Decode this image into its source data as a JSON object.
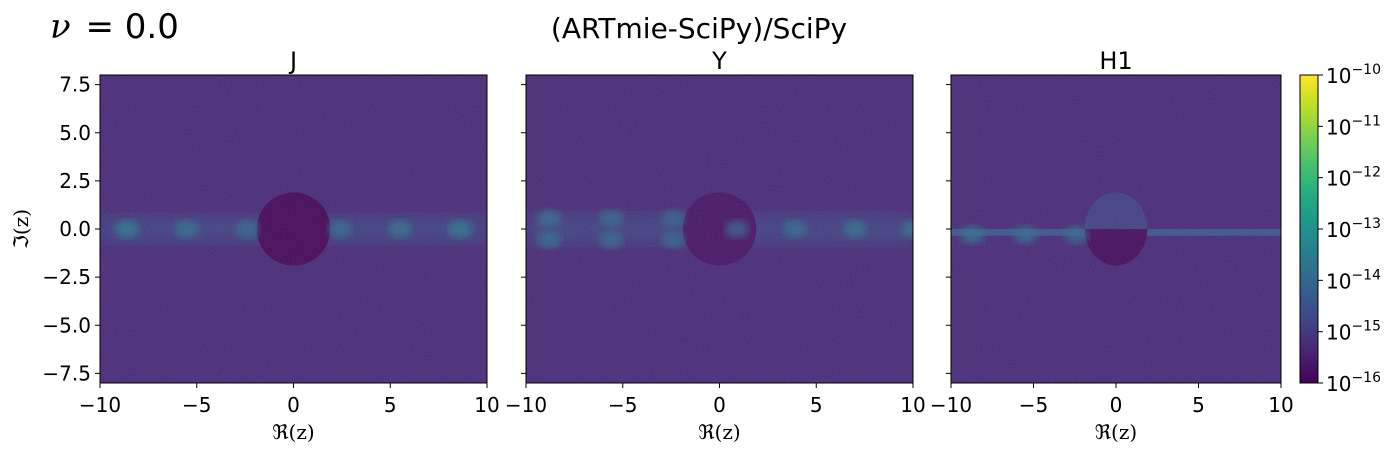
{
  "figure": {
    "corner_label_symbol": "ν",
    "corner_label_value": "= 0.0",
    "suptitle": "(ARTmie-SciPy)/SciPy"
  },
  "chart_data": [
    {
      "type": "heatmap",
      "title": "J",
      "xlabel": "ℜ(z)",
      "ylabel": "ℑ(z)",
      "xlim": [
        -10,
        10
      ],
      "ylim": [
        -8,
        8
      ],
      "xticks": [
        "−10",
        "−5",
        "0",
        "5",
        "10"
      ],
      "xtick_values": [
        -10,
        -5,
        0,
        5,
        10
      ],
      "yticks": [
        "7.5",
        "5.0",
        "2.5",
        "0.0",
        "−2.5",
        "−5.0",
        "−7.5"
      ],
      "ytick_values": [
        7.5,
        5.0,
        2.5,
        0.0,
        -2.5,
        -5.0,
        -7.5
      ],
      "background_log10": -15.3,
      "band": {
        "center_y": 0,
        "half_width": 0.7,
        "log10": -14.4
      },
      "disk": {
        "cx": 0,
        "cy": 0,
        "r": 1.9,
        "log10": -15.9,
        "split": false
      },
      "hot_spots": [
        {
          "x": -8.6,
          "y": 0,
          "log10": -13.6
        },
        {
          "x": -5.5,
          "y": 0,
          "log10": -13.8
        },
        {
          "x": -2.4,
          "y": 0,
          "log10": -14.0
        },
        {
          "x": 2.4,
          "y": 0,
          "log10": -14.0
        },
        {
          "x": 5.5,
          "y": 0,
          "log10": -13.8
        },
        {
          "x": 8.6,
          "y": 0,
          "log10": -13.6
        }
      ]
    },
    {
      "type": "heatmap",
      "title": "Y",
      "xlabel": "ℜ(z)",
      "ylabel": "",
      "xlim": [
        -10,
        10
      ],
      "ylim": [
        -8,
        8
      ],
      "xticks": [
        "−10",
        "−5",
        "0",
        "5",
        "10"
      ],
      "xtick_values": [
        -10,
        -5,
        0,
        5,
        10
      ],
      "yticks": [],
      "ytick_values": [
        7.5,
        5.0,
        2.5,
        0.0,
        -2.5,
        -5.0,
        -7.5
      ],
      "background_log10": -15.3,
      "band": {
        "center_y": 0,
        "half_width": 0.8,
        "log10": -14.5
      },
      "disk": {
        "cx": 0,
        "cy": 0,
        "r": 1.9,
        "log10": -15.7,
        "split": false
      },
      "hot_spots": [
        {
          "x": -8.8,
          "y": 0.55,
          "log10": -13.9
        },
        {
          "x": -8.8,
          "y": -0.55,
          "log10": -13.9
        },
        {
          "x": -5.6,
          "y": 0.55,
          "log10": -14.0
        },
        {
          "x": -5.6,
          "y": -0.55,
          "log10": -14.0
        },
        {
          "x": -2.4,
          "y": 0.55,
          "log10": -14.1
        },
        {
          "x": -2.4,
          "y": -0.55,
          "log10": -14.1
        },
        {
          "x": 0.9,
          "y": 0,
          "log10": -14.2
        },
        {
          "x": 3.9,
          "y": 0,
          "log10": -13.9
        },
        {
          "x": 7.0,
          "y": 0,
          "log10": -13.8
        },
        {
          "x": 10.0,
          "y": 0,
          "log10": -13.8
        }
      ]
    },
    {
      "type": "heatmap",
      "title": "H1",
      "xlabel": "ℜ(z)",
      "ylabel": "",
      "xlim": [
        -10,
        10
      ],
      "ylim": [
        -8,
        8
      ],
      "xticks": [
        "−10",
        "−5",
        "0",
        "5",
        "10"
      ],
      "xtick_values": [
        -10,
        -5,
        0,
        5,
        10
      ],
      "yticks": [],
      "ytick_values": [
        7.5,
        5.0,
        2.5,
        0.0,
        -2.5,
        -5.0,
        -7.5
      ],
      "background_log10": -15.3,
      "line": {
        "y_top": 0,
        "y_bottom": -0.35,
        "log10": -14.3
      },
      "disk": {
        "cx": 0,
        "cy": 0,
        "r": 1.9,
        "log10": -15.3,
        "split": true,
        "upper_log10": -14.9,
        "lower_log10": -15.8
      },
      "hot_spots": [
        {
          "x": -8.7,
          "y": -0.3,
          "log10": -13.8
        },
        {
          "x": -5.5,
          "y": -0.3,
          "log10": -13.9
        },
        {
          "x": -2.4,
          "y": -0.3,
          "log10": -14.0
        }
      ]
    }
  ],
  "colorbar": {
    "colormap": "viridis",
    "scale": "log",
    "range_log10": [
      -16,
      -10
    ],
    "tick_base": "10",
    "tick_exponents": [
      "−10",
      "−11",
      "−12",
      "−13",
      "−14",
      "−15",
      "−16"
    ],
    "tick_values_log10": [
      -10,
      -11,
      -12,
      -13,
      -14,
      -15,
      -16
    ]
  }
}
